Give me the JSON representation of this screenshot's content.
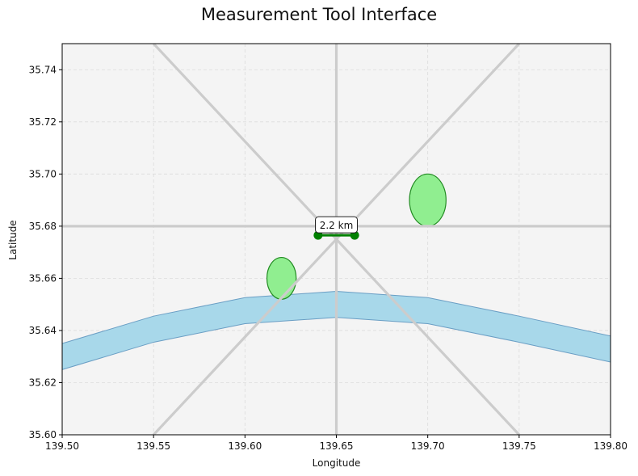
{
  "title": "Measurement Tool Interface",
  "colors": {
    "background": "#f4f4f4",
    "road": "#cccccc",
    "river_fill": "#a8d8ea",
    "river_edge": "#6a9ec4",
    "park_fill": "#90ee90",
    "park_edge": "#228b22",
    "measure": "#008000"
  },
  "chart_data": {
    "type": "map",
    "xlabel": "Longitude",
    "ylabel": "Latitude",
    "xlim": [
      139.5,
      139.8
    ],
    "ylim": [
      35.6,
      35.75
    ],
    "xticks": [
      "139.50",
      "139.55",
      "139.60",
      "139.65",
      "139.70",
      "139.75",
      "139.80"
    ],
    "yticks": [
      "35.60",
      "35.62",
      "35.64",
      "35.66",
      "35.68",
      "35.70",
      "35.72",
      "35.74"
    ],
    "grid": true,
    "roads": [
      {
        "from": [
          139.65,
          35.6
        ],
        "to": [
          139.65,
          35.75
        ]
      },
      {
        "from": [
          139.5,
          35.68
        ],
        "to": [
          139.8,
          35.68
        ]
      },
      {
        "from": [
          139.55,
          35.6
        ],
        "to": [
          139.75,
          35.75
        ]
      },
      {
        "from": [
          139.55,
          35.75
        ],
        "to": [
          139.75,
          35.6
        ]
      }
    ],
    "river": {
      "x": [
        139.5,
        139.55,
        139.6,
        139.65,
        139.7,
        139.75,
        139.8
      ],
      "upper": [
        35.635,
        35.6455,
        35.6526,
        35.655,
        35.6526,
        35.6455,
        35.6379
      ],
      "lower": [
        35.625,
        35.6355,
        35.6426,
        35.645,
        35.6426,
        35.6355,
        35.6279
      ]
    },
    "parks": [
      {
        "center": [
          139.62,
          35.66
        ],
        "width": 0.016,
        "height": 0.016
      },
      {
        "center": [
          139.7,
          35.69
        ],
        "width": 0.02,
        "height": 0.02
      }
    ],
    "measurement": {
      "points": [
        [
          139.64,
          35.6765
        ],
        [
          139.66,
          35.6765
        ]
      ],
      "label": "2.2 km"
    }
  }
}
